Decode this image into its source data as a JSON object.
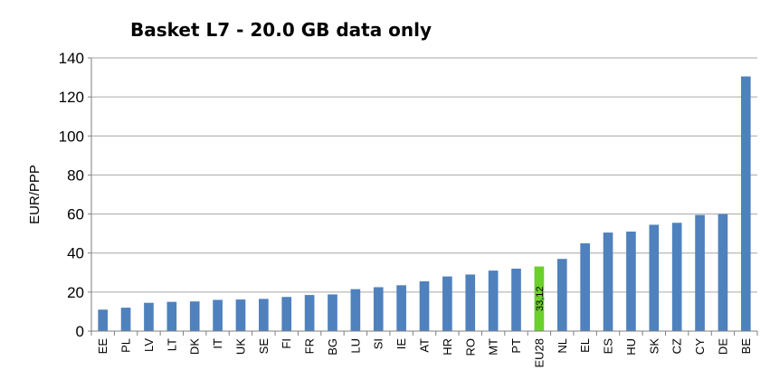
{
  "chart_data": {
    "type": "bar",
    "title": "Basket L7 - 20.0 GB data only",
    "xlabel": "",
    "ylabel": "EUR/PPP",
    "ylim": [
      0,
      140
    ],
    "yticks": [
      0,
      20,
      40,
      60,
      80,
      100,
      120,
      140
    ],
    "grid": true,
    "legend": "none",
    "categories": [
      "EE",
      "PL",
      "LV",
      "LT",
      "DK",
      "IT",
      "UK",
      "SE",
      "FI",
      "FR",
      "BG",
      "LU",
      "SI",
      "IE",
      "AT",
      "HR",
      "RO",
      "MT",
      "PT",
      "EU28",
      "NL",
      "EL",
      "ES",
      "HU",
      "SK",
      "CZ",
      "CY",
      "DE",
      "BE"
    ],
    "values": [
      11,
      12,
      14.5,
      15,
      15.2,
      16,
      16.2,
      16.5,
      17.5,
      18.5,
      18.8,
      21.5,
      22.5,
      23.5,
      25.5,
      28,
      29,
      31,
      32,
      33.12,
      37,
      45,
      50.5,
      51,
      54.5,
      55.5,
      59.5,
      60,
      130.5
    ],
    "highlight": {
      "category": "EU28",
      "label": "33,12",
      "color": "#6ad02a"
    },
    "colors": {
      "bar": "#4f81bd",
      "highlight": "#6ad02a",
      "grid": "#a6a6a6",
      "axis": "#7f7f7f"
    }
  }
}
